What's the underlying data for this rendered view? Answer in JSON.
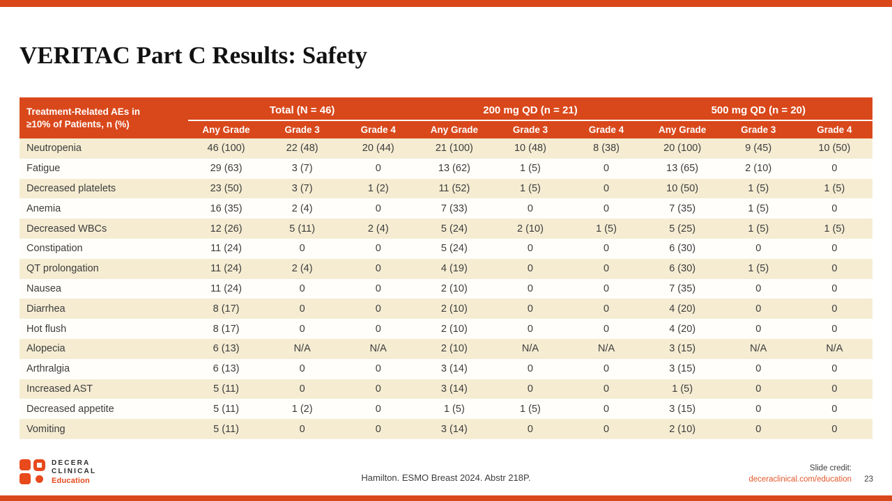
{
  "slide": {
    "title": "VERITAC Part C Results: Safety",
    "citation": "Hamilton. ESMO Breast 2024. Abstr 218P.",
    "credit_label": "Slide credit:",
    "credit_link": "deceraclinical.com/education",
    "page_number": "23",
    "logo": {
      "line1": "DECERA",
      "line2": "CLINICAL",
      "line3": "Education"
    }
  },
  "colors": {
    "accent_orange": "#d9481b",
    "logo_orange": "#e8491d",
    "row_cream": "#f5ecd2",
    "text_dark": "#3c3c3c",
    "link_orange": "#e2572b"
  },
  "table": {
    "first_col_header_line1": "Treatment-Related AEs in",
    "first_col_header_line2": "≥10% of Patients, n (%)",
    "groups": [
      {
        "label": "Total (N = 46)"
      },
      {
        "label": "200 mg QD (n = 21)"
      },
      {
        "label": "500 mg QD (n = 20)"
      }
    ],
    "subheaders": [
      "Any Grade",
      "Grade 3",
      "Grade 4"
    ],
    "rows": [
      {
        "label": "Neutropenia",
        "values": [
          "46 (100)",
          "22 (48)",
          "20 (44)",
          "21 (100)",
          "10 (48)",
          "8 (38)",
          "20 (100)",
          "9 (45)",
          "10 (50)"
        ]
      },
      {
        "label": "Fatigue",
        "values": [
          "29 (63)",
          "3 (7)",
          "0",
          "13 (62)",
          "1 (5)",
          "0",
          "13 (65)",
          "2 (10)",
          "0"
        ]
      },
      {
        "label": "Decreased platelets",
        "values": [
          "23 (50)",
          "3 (7)",
          "1 (2)",
          "11 (52)",
          "1 (5)",
          "0",
          "10 (50)",
          "1 (5)",
          "1 (5)"
        ]
      },
      {
        "label": "Anemia",
        "values": [
          "16 (35)",
          "2 (4)",
          "0",
          "7 (33)",
          "0",
          "0",
          "7 (35)",
          "1 (5)",
          "0"
        ]
      },
      {
        "label": "Decreased WBCs",
        "values": [
          "12 (26)",
          "5 (11)",
          "2 (4)",
          "5 (24)",
          "2 (10)",
          "1 (5)",
          "5 (25)",
          "1 (5)",
          "1 (5)"
        ]
      },
      {
        "label": "Constipation",
        "values": [
          "11 (24)",
          "0",
          "0",
          "5 (24)",
          "0",
          "0",
          "6 (30)",
          "0",
          "0"
        ]
      },
      {
        "label": "QT prolongation",
        "values": [
          "11 (24)",
          "2 (4)",
          "0",
          "4 (19)",
          "0",
          "0",
          "6 (30)",
          "1 (5)",
          "0"
        ]
      },
      {
        "label": "Nausea",
        "values": [
          "11 (24)",
          "0",
          "0",
          "2 (10)",
          "0",
          "0",
          "7 (35)",
          "0",
          "0"
        ]
      },
      {
        "label": "Diarrhea",
        "values": [
          "8 (17)",
          "0",
          "0",
          "2 (10)",
          "0",
          "0",
          "4 (20)",
          "0",
          "0"
        ]
      },
      {
        "label": "Hot flush",
        "values": [
          "8 (17)",
          "0",
          "0",
          "2 (10)",
          "0",
          "0",
          "4 (20)",
          "0",
          "0"
        ]
      },
      {
        "label": "Alopecia",
        "values": [
          "6 (13)",
          "N/A",
          "N/A",
          "2 (10)",
          "N/A",
          "N/A",
          "3 (15)",
          "N/A",
          "N/A"
        ]
      },
      {
        "label": "Arthralgia",
        "values": [
          "6 (13)",
          "0",
          "0",
          "3 (14)",
          "0",
          "0",
          "3 (15)",
          "0",
          "0"
        ]
      },
      {
        "label": "Increased AST",
        "values": [
          "5 (11)",
          "0",
          "0",
          "3 (14)",
          "0",
          "0",
          "1 (5)",
          "0",
          "0"
        ]
      },
      {
        "label": "Decreased appetite",
        "values": [
          "5 (11)",
          "1 (2)",
          "0",
          "1 (5)",
          "1 (5)",
          "0",
          "3 (15)",
          "0",
          "0"
        ]
      },
      {
        "label": "Vomiting",
        "values": [
          "5 (11)",
          "0",
          "0",
          "3 (14)",
          "0",
          "0",
          "2 (10)",
          "0",
          "0"
        ]
      }
    ]
  },
  "chart_data": {
    "type": "table",
    "title": "Treatment-Related AEs in ≥10% of Patients, n (%)",
    "column_groups": [
      "Total (N = 46)",
      "200 mg QD (n = 21)",
      "500 mg QD (n = 20)"
    ],
    "columns_per_group": [
      "Any Grade",
      "Grade 3",
      "Grade 4"
    ]
  }
}
